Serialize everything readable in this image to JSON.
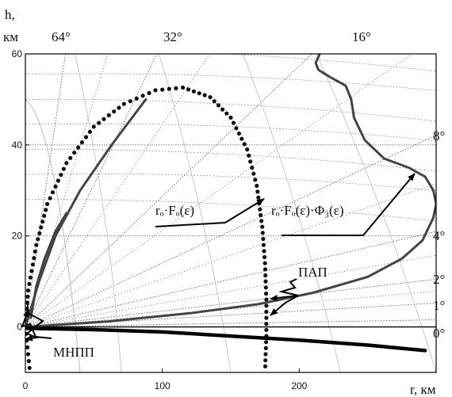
{
  "chart_data": {
    "type": "line",
    "axes": {
      "y_label_line1": "h,",
      "y_label_line2": "км",
      "x_label": "r, км",
      "xlim": [
        0,
        300
      ],
      "ylim": [
        -10,
        60
      ],
      "x_ticks": [
        "0",
        "100",
        "200"
      ],
      "y_ticks": [
        "0",
        "20",
        "40",
        "60"
      ]
    },
    "top_angle_labels": [
      "64°",
      "32°",
      "16°"
    ],
    "right_angle_labels": [
      "8°",
      "4°",
      "2°",
      "1°",
      "0°"
    ],
    "annotations": {
      "ro_fo": "rₒ·Fₒ(ε)",
      "ro_fo_phi": "rₒ·Fₒ(ε)·Φ₃(ε)",
      "pap": "ПАП",
      "mnpp": "МНПП"
    },
    "series": [
      {
        "style": "dotted",
        "points": [
          [
            4,
            -12
          ],
          [
            2,
            -6
          ],
          [
            0,
            0
          ],
          [
            2,
            8
          ],
          [
            8,
            18
          ],
          [
            16,
            27
          ],
          [
            30,
            36
          ],
          [
            50,
            44
          ],
          [
            72,
            49
          ],
          [
            95,
            52
          ],
          [
            115,
            52.6
          ],
          [
            135,
            50.5
          ],
          [
            150,
            46
          ],
          [
            162,
            39
          ],
          [
            169,
            31
          ],
          [
            173,
            22
          ],
          [
            175,
            14
          ],
          [
            176,
            6
          ],
          [
            176,
            -2
          ],
          [
            175,
            -10
          ]
        ]
      },
      {
        "style": "solid",
        "points": [
          [
            0,
            0
          ],
          [
            10,
            10
          ],
          [
            22,
            20
          ],
          [
            40,
            30
          ],
          [
            63,
            40
          ],
          [
            78,
            46
          ],
          [
            88,
            50
          ]
        ]
      },
      {
        "style": "solid",
        "points": [
          [
            0,
            0
          ],
          [
            60,
            1.2
          ],
          [
            120,
            3
          ],
          [
            170,
            5
          ],
          [
            210,
            7.5
          ],
          [
            250,
            11
          ],
          [
            275,
            15
          ],
          [
            290,
            19
          ],
          [
            298,
            24
          ],
          [
            300,
            27
          ],
          [
            298,
            30
          ],
          [
            292,
            33
          ],
          [
            280,
            35
          ],
          [
            262,
            37
          ],
          [
            248,
            41
          ],
          [
            240,
            46
          ],
          [
            238,
            50
          ],
          [
            234,
            53
          ],
          [
            222,
            55
          ],
          [
            214,
            56.5
          ],
          [
            212,
            58
          ],
          [
            215,
            60
          ]
        ]
      },
      {
        "style": "solid",
        "points": [
          [
            4,
            2
          ],
          [
            8,
            9
          ],
          [
            14,
            15
          ],
          [
            22,
            21
          ],
          [
            30,
            25
          ]
        ]
      },
      {
        "style": "thick",
        "points": [
          [
            0,
            -0.3
          ],
          [
            50,
            -0.6
          ],
          [
            100,
            -1.1
          ],
          [
            150,
            -2.0
          ],
          [
            200,
            -2.9
          ],
          [
            250,
            -4.0
          ],
          [
            292,
            -5.2
          ]
        ]
      }
    ]
  }
}
